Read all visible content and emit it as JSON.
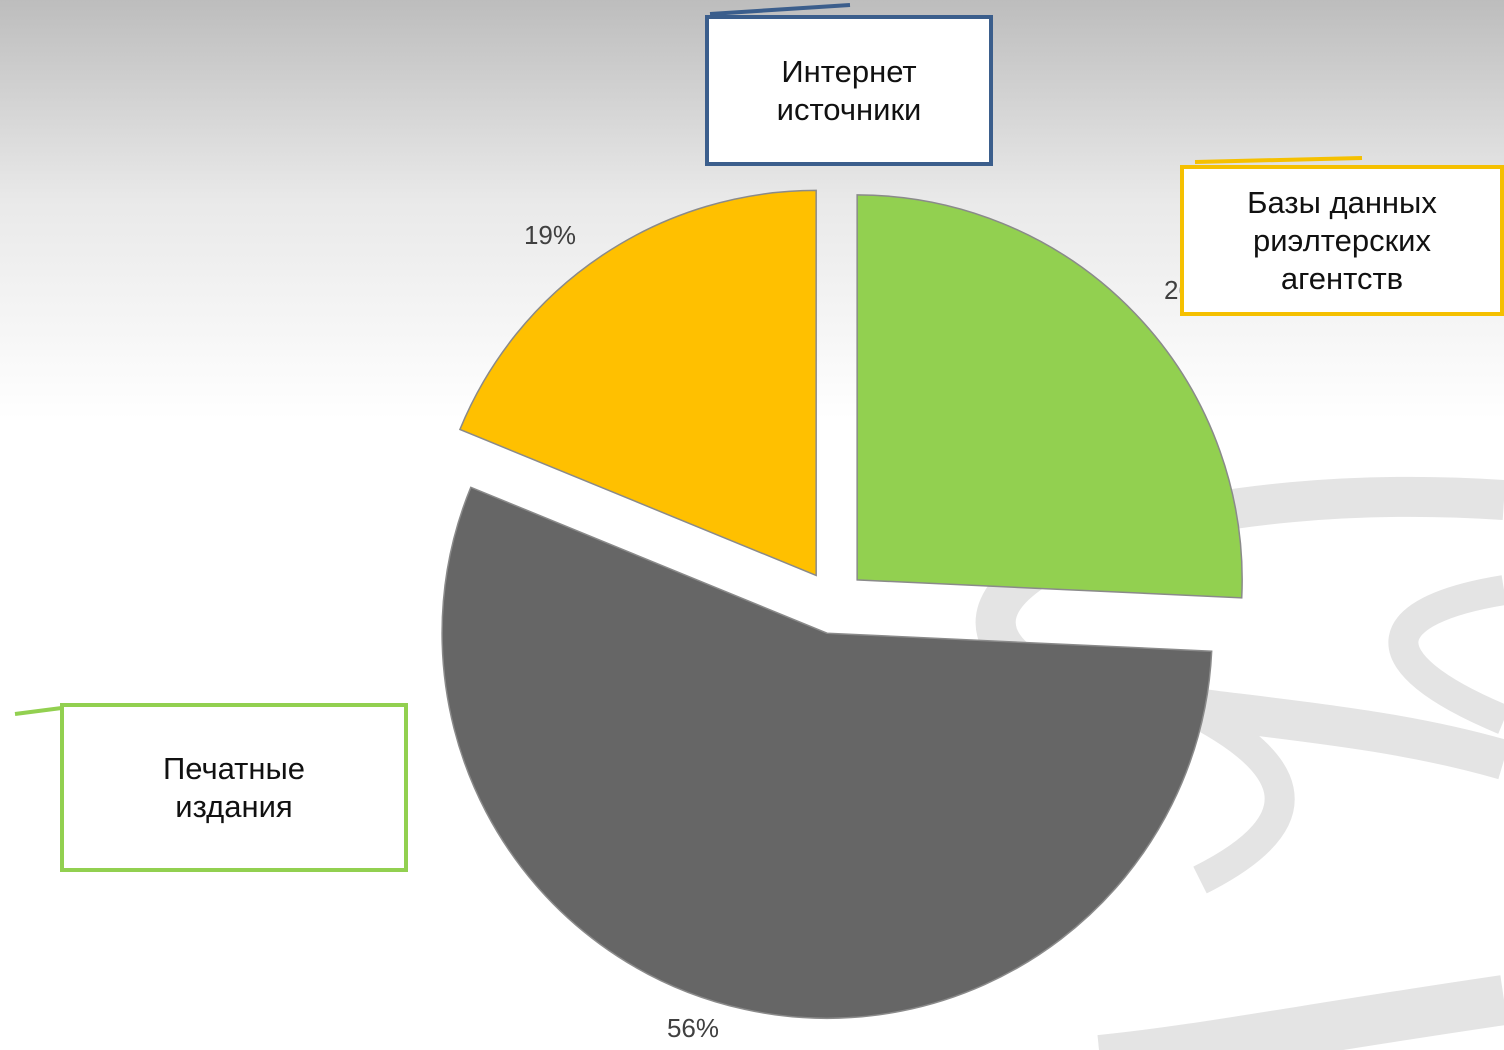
{
  "chart_data": {
    "type": "pie",
    "categories": [
      null,
      null,
      null
    ],
    "values": [
      26,
      56,
      19
    ],
    "value_labels": [
      "26%",
      "56%",
      "19%"
    ],
    "colors": [
      "#92d050",
      "#666666",
      "#ffc000"
    ],
    "callouts": [
      {
        "lines": [
          "Интернет",
          "источники"
        ],
        "color": "#3b5e8c"
      },
      {
        "lines": [
          "Базы данных",
          "риэлтерских",
          "агентств"
        ],
        "color": "#f5c000"
      },
      {
        "lines": [
          "Печатные",
          "издания"
        ],
        "color": "#92d050"
      }
    ]
  }
}
